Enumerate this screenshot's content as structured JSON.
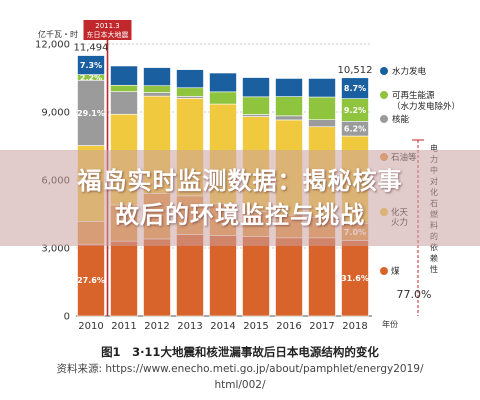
{
  "chart_data": {
    "type": "bar",
    "stacked": true,
    "y_axis_label": "亿千瓦・时",
    "x_axis_unit": "年份",
    "categories": [
      "2010",
      "2011",
      "2012",
      "2013",
      "2014",
      "2015",
      "2016",
      "2017",
      "2018"
    ],
    "ylim": [
      0,
      12000
    ],
    "yticks": [
      "0",
      "3,000",
      "6,000",
      "9,000",
      "12,000"
    ],
    "total_2010": "11,494",
    "total_2018": "10,512",
    "event_label": [
      "2011.3",
      "东日本大地震"
    ],
    "series": [
      {
        "name": "煤",
        "color": "#d9642b",
        "values": [
          3170,
          3300,
          3400,
          3600,
          3550,
          3500,
          3450,
          3450,
          3340
        ]
      },
      {
        "name": "石油等",
        "color": "#e79a45",
        "values": [
          1000,
          1600,
          2000,
          1700,
          1400,
          1100,
          1000,
          900,
          750
        ]
      },
      {
        "name": "液化天然气",
        "color": "#f1c93f",
        "values": [
          3350,
          4000,
          4300,
          4300,
          4400,
          4200,
          4200,
          4000,
          3850
        ]
      },
      {
        "name": "核能",
        "color": "#9b9b9b",
        "values": [
          2880,
          1000,
          160,
          90,
          0,
          90,
          180,
          310,
          650
        ]
      },
      {
        "name": "可再生能源（水力发电除外）",
        "color": "#8fc43f",
        "values": [
          250,
          280,
          300,
          380,
          540,
          780,
          850,
          1000,
          1000
        ]
      },
      {
        "name": "水力发电",
        "color": "#1a5fa0",
        "values": [
          840,
          850,
          800,
          800,
          830,
          850,
          800,
          820,
          920
        ]
      }
    ],
    "data_labels": {
      "2010": [
        "27.6%",
        "29.1%",
        "2.2%",
        "7.3%"
      ],
      "2018": [
        "31.6%",
        "7.0%",
        "6.2%",
        "9.2%",
        "8.7%"
      ]
    },
    "right_annotation": [
      "电",
      "力",
      "中",
      "对",
      "化",
      "石",
      "燃",
      "料",
      "的",
      "依",
      "赖",
      "性"
    ],
    "right_percent": "77.0%",
    "legend_labels": {
      "hydro": "水力发电",
      "renew": [
        "可再生能源",
        "（水力发电除外）"
      ],
      "nuclear": "核能",
      "oil": "石油等",
      "lng": [
        "化天",
        "火力"
      ],
      "coal": "煤"
    }
  },
  "banner": {
    "line1": "福岛实时监测数据：揭秘核事",
    "line2": "故后的环境监控与挑战"
  },
  "caption": {
    "title": "图1　3·11大地震和核泄漏事故后日本电源结构的变化",
    "source_line1": "资料来源: https://www.enecho.meti.go.jp/about/pamphlet/energy2019/",
    "source_line2": "html/002/"
  }
}
